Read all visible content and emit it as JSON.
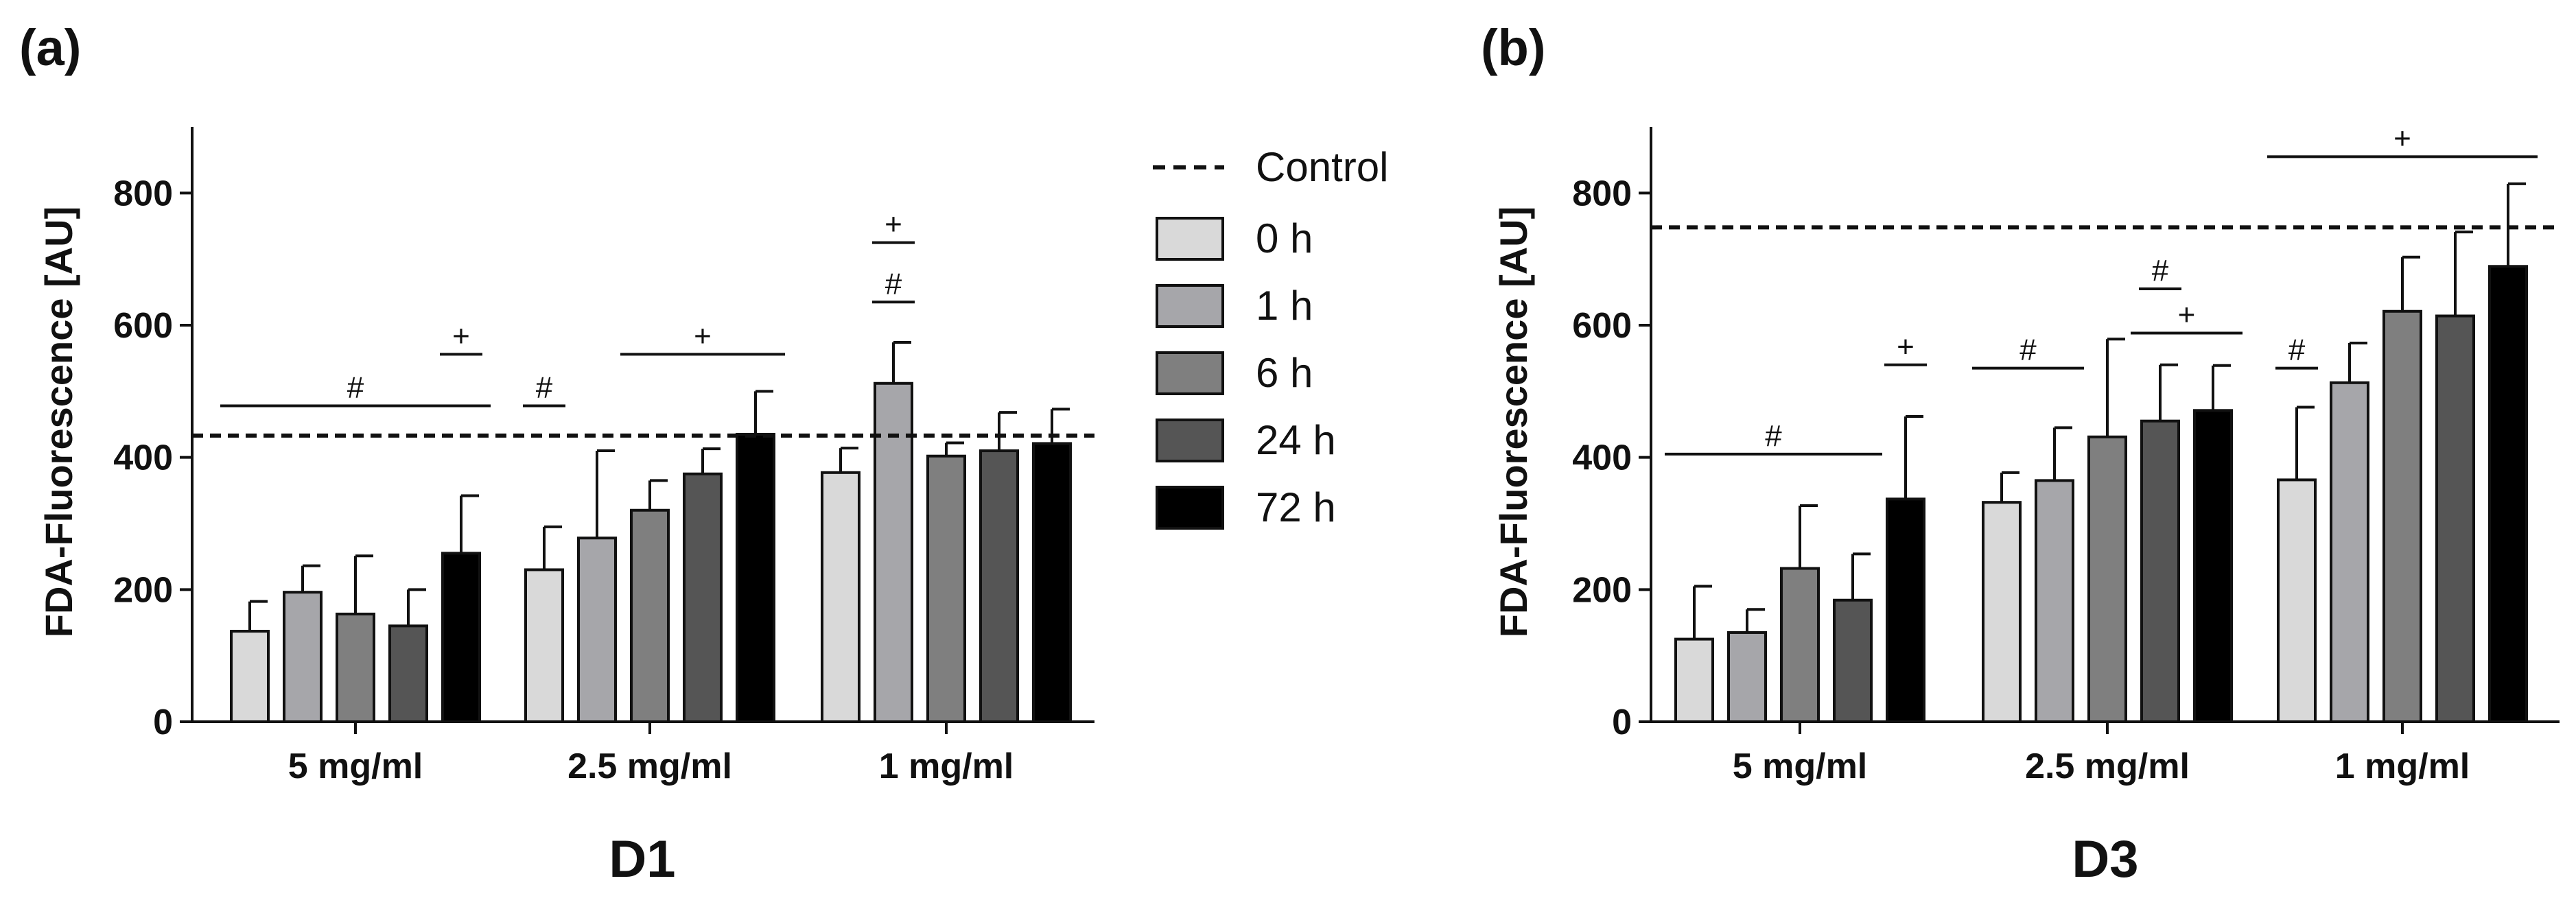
{
  "panel_labels": [
    "(a)",
    "(b)"
  ],
  "legend": {
    "control": "Control",
    "entries": [
      {
        "label": "0 h",
        "color": "#d9d9d9"
      },
      {
        "label": "1 h",
        "color": "#a6a6aa"
      },
      {
        "label": "6 h",
        "color": "#7f7f7f"
      },
      {
        "label": "24 h",
        "color": "#555555"
      },
      {
        "label": "72 h",
        "color": "#000000"
      }
    ]
  },
  "chart_data": [
    {
      "type": "bar",
      "panel": "(a)",
      "title": "",
      "xlabel": "D1",
      "ylabel": "FDA-Fluorescence [AU]",
      "ylim": [
        0,
        900
      ],
      "yticks": [
        0,
        200,
        400,
        600,
        800
      ],
      "categories": [
        "5 mg/ml",
        "2.5 mg/ml",
        "1 mg/ml"
      ],
      "control": 433,
      "series": [
        {
          "name": "0 h",
          "values": [
            137,
            230,
            377
          ],
          "errors": [
            45,
            65,
            37
          ]
        },
        {
          "name": "1 h",
          "values": [
            196,
            278,
            512
          ],
          "errors": [
            40,
            132,
            62
          ]
        },
        {
          "name": "6 h",
          "values": [
            163,
            320,
            402
          ],
          "errors": [
            88,
            45,
            20
          ]
        },
        {
          "name": "24 h",
          "values": [
            145,
            375,
            410
          ],
          "errors": [
            55,
            38,
            58
          ]
        },
        {
          "name": "72 h",
          "values": [
            255,
            435,
            421
          ],
          "errors": [
            87,
            65,
            52
          ]
        }
      ],
      "annotations": [
        {
          "symbol": "#",
          "cat_from": 0,
          "bar_from": 0,
          "cat_to": 0,
          "bar_to": 4,
          "y": 478
        },
        {
          "symbol": "+",
          "cat_from": 0,
          "bar_from": 4,
          "cat_to": 0,
          "bar_to": 4,
          "y": 556
        },
        {
          "symbol": "#",
          "cat_from": 1,
          "bar_from": 0,
          "cat_to": 1,
          "bar_to": 0,
          "y": 478
        },
        {
          "symbol": "+",
          "cat_from": 1,
          "bar_from": 2,
          "cat_to": 1,
          "bar_to": 4,
          "y": 556
        },
        {
          "symbol": "#",
          "cat_from": 2,
          "bar_from": 1,
          "cat_to": 2,
          "bar_to": 1,
          "y": 635
        },
        {
          "symbol": "+",
          "cat_from": 2,
          "bar_from": 1,
          "cat_to": 2,
          "bar_to": 1,
          "y": 725
        }
      ]
    },
    {
      "type": "bar",
      "panel": "(b)",
      "title": "",
      "xlabel": "D3",
      "ylabel": "FDA-Fluorescence [AU]",
      "ylim": [
        0,
        900
      ],
      "yticks": [
        0,
        200,
        400,
        600,
        800
      ],
      "categories": [
        "5 mg/ml",
        "2.5 mg/ml",
        "1 mg/ml"
      ],
      "control": 748,
      "series": [
        {
          "name": "0 h",
          "values": [
            125,
            332,
            366
          ],
          "errors": [
            80,
            45,
            110
          ]
        },
        {
          "name": "1 h",
          "values": [
            135,
            365,
            513
          ],
          "errors": [
            35,
            80,
            60
          ]
        },
        {
          "name": "6 h",
          "values": [
            232,
            431,
            621
          ],
          "errors": [
            95,
            148,
            82
          ]
        },
        {
          "name": "24 h",
          "values": [
            184,
            455,
            614
          ],
          "errors": [
            70,
            85,
            127
          ]
        },
        {
          "name": "72 h",
          "values": [
            337,
            471,
            689
          ],
          "errors": [
            125,
            68,
            125
          ]
        }
      ],
      "annotations": [
        {
          "symbol": "#",
          "cat_from": 0,
          "bar_from": 0,
          "cat_to": 0,
          "bar_to": 3,
          "y": 405
        },
        {
          "symbol": "+",
          "cat_from": 0,
          "bar_from": 4,
          "cat_to": 0,
          "bar_to": 4,
          "y": 540
        },
        {
          "symbol": "#",
          "cat_from": 1,
          "bar_from": 0,
          "cat_to": 1,
          "bar_to": 1,
          "y": 535
        },
        {
          "symbol": "+",
          "cat_from": 1,
          "bar_from": 3,
          "cat_to": 1,
          "bar_to": 4,
          "y": 588
        },
        {
          "symbol": "#",
          "cat_from": 1,
          "bar_from": 3,
          "cat_to": 1,
          "bar_to": 3,
          "y": 655
        },
        {
          "symbol": "#",
          "cat_from": 2,
          "bar_from": 0,
          "cat_to": 2,
          "bar_to": 0,
          "y": 535
        },
        {
          "symbol": "+",
          "cat_from": 2,
          "bar_from": 0,
          "cat_to": 2,
          "bar_to": 4,
          "y": 855
        }
      ]
    }
  ]
}
